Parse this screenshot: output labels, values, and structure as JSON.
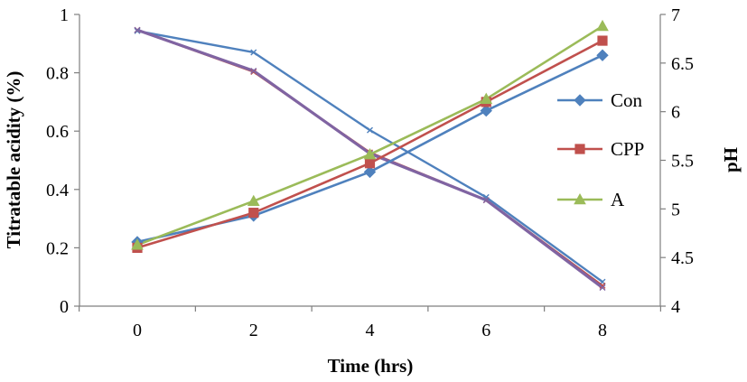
{
  "chart_data": {
    "type": "line",
    "title": "",
    "xlabel": "Time (hrs)",
    "ylabel": "Titratable acidity (%)",
    "y2label": "pH",
    "categories": [
      0,
      2,
      4,
      6,
      8
    ],
    "ylim": [
      0,
      1
    ],
    "yticks": [
      "0",
      "0.2",
      "0.4",
      "0.6",
      "0.8",
      "1"
    ],
    "y2lim": [
      4,
      7
    ],
    "y2ticks": [
      "4",
      "4.5",
      "5",
      "5.5",
      "6",
      "6.5",
      "7"
    ],
    "grid": false,
    "legend_position": "right",
    "series": [
      {
        "name": "Con",
        "axis": "left",
        "marker": "diamond",
        "color": "#4f81bd",
        "values": [
          0.22,
          0.31,
          0.46,
          0.67,
          0.86
        ]
      },
      {
        "name": "CPP",
        "axis": "left",
        "marker": "square",
        "color": "#c0504d",
        "values": [
          0.2,
          0.32,
          0.49,
          0.7,
          0.91
        ]
      },
      {
        "name": "A",
        "axis": "left",
        "marker": "triangle",
        "color": "#9bbb59",
        "values": [
          0.21,
          0.36,
          0.52,
          0.71,
          0.96
        ]
      },
      {
        "name": "",
        "axis": "right",
        "marker": "none",
        "color": "#4f81bd",
        "values": [
          6.83,
          6.61,
          5.81,
          5.12,
          4.25
        ]
      },
      {
        "name": "",
        "axis": "right",
        "marker": "none",
        "color": "#c0504d",
        "values": [
          6.84,
          6.41,
          5.58,
          5.09,
          4.21
        ]
      },
      {
        "name": "",
        "axis": "right",
        "marker": "none",
        "color": "#8064a2",
        "values": [
          6.84,
          6.42,
          5.57,
          5.09,
          4.19
        ]
      }
    ]
  }
}
